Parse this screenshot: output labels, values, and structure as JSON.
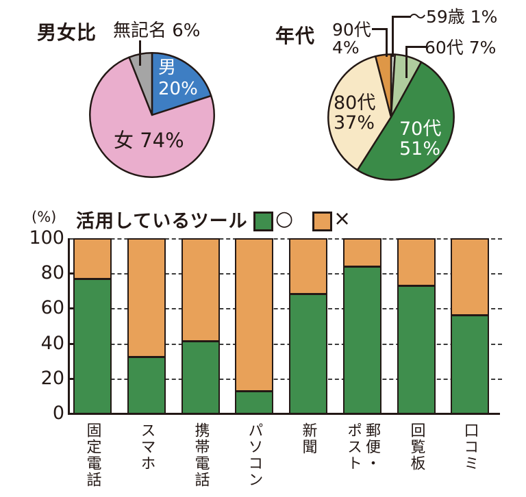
{
  "figure": {
    "background": "#ffffff",
    "outline_color": "#231815"
  },
  "chart_data": [
    {
      "type": "pie",
      "title": "男女比",
      "start_angle": "top",
      "direction": "clockwise",
      "slices": [
        {
          "label": "男",
          "value": 20,
          "display": "男 20%",
          "label_lines": [
            "男",
            "20%"
          ],
          "color": "#3e7ec3",
          "label_color": "#ffffff",
          "label_position": "inside"
        },
        {
          "label": "女",
          "value": 74,
          "display": "女 74%",
          "color": "#eaaecd",
          "label_color": "#231815",
          "label_position": "inside"
        },
        {
          "label": "無記名",
          "value": 6,
          "display": "無記名 6%",
          "color": "#a5a5a5",
          "label_color": "#231815",
          "label_position": "callout"
        }
      ]
    },
    {
      "type": "pie",
      "title": "年代",
      "start_angle": "top",
      "direction": "clockwise",
      "slices": [
        {
          "label": "〜59歳",
          "value": 1,
          "display": "〜59歳 1%",
          "color": "#cdd3ca",
          "label_color": "#231815",
          "label_position": "callout"
        },
        {
          "label": "60代",
          "value": 7,
          "display": "60代 7%",
          "color": "#b0cd9e",
          "label_color": "#231815",
          "label_position": "callout"
        },
        {
          "label": "70代",
          "value": 51,
          "display": "70代 51%",
          "label_lines": [
            "70代",
            "51%"
          ],
          "color": "#3a8b48",
          "label_color": "#ffffff",
          "label_position": "inside"
        },
        {
          "label": "80代",
          "value": 37,
          "display": "80代 37%",
          "label_lines": [
            "80代",
            "37%"
          ],
          "color": "#f8e8c5",
          "label_color": "#231815",
          "label_position": "inside"
        },
        {
          "label": "90代",
          "value": 4,
          "display": "90代 4%",
          "label_lines": [
            "90代",
            "4%"
          ],
          "color": "#de9747",
          "label_color": "#231815",
          "label_position": "callout"
        }
      ]
    },
    {
      "type": "bar",
      "subtype": "stacked-100",
      "title": "活用しているツール",
      "unit_label": "(%)",
      "categories": [
        "固定電話",
        "スマホ",
        "携帯電話",
        "パソコン",
        "新聞",
        "郵便・ポスト",
        "回覧板",
        "口コミ"
      ],
      "category_lines": [
        [
          "固定電話"
        ],
        [
          "スマホ"
        ],
        [
          "携帯電話"
        ],
        [
          "パソコン"
        ],
        [
          "新聞"
        ],
        [
          "郵便・",
          "ポスト"
        ],
        [
          "回覧板"
        ],
        [
          "口コミ"
        ]
      ],
      "series": [
        {
          "name": "○",
          "color": "#3f8e4d",
          "values": [
            78,
            33,
            42,
            13,
            69,
            85,
            74,
            57
          ]
        },
        {
          "name": "×",
          "color": "#e8a159",
          "values": [
            22,
            67,
            58,
            87,
            31,
            15,
            26,
            43
          ]
        }
      ],
      "ylim": [
        0,
        100
      ],
      "yticks": [
        0,
        20,
        40,
        60,
        80,
        100
      ],
      "grid": "dashed-horizontal",
      "legend_position": "top-right"
    }
  ]
}
